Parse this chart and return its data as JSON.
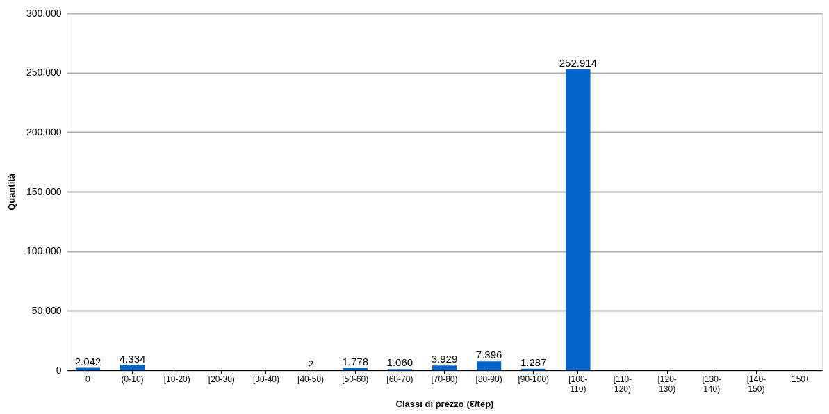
{
  "chart_data": {
    "type": "bar",
    "xlabel": "Classi di prezzo (€/tep)",
    "ylabel": "Quantità",
    "categories": [
      "0",
      "(0-10)",
      "[10-20)",
      "[20-30)",
      "[30-40)",
      "[40-50)",
      "[50-60)",
      "[60-70)",
      "[70-80)",
      "[80-90)",
      "[90-100)",
      "[100-110)",
      "[110-120)",
      "[120-130)",
      "[130-140)",
      "[140-150)",
      "150+"
    ],
    "values": [
      2042,
      4334,
      0,
      0,
      0,
      2,
      1778,
      1060,
      3929,
      7396,
      1287,
      252914,
      0,
      0,
      0,
      0,
      0
    ],
    "value_labels": [
      "2.042",
      "4.334",
      null,
      null,
      null,
      "2",
      "1.778",
      "1.060",
      "3.929",
      "7.396",
      "1.287",
      "252.914",
      null,
      null,
      null,
      null,
      null
    ],
    "color": "#0066cc",
    "ylim": [
      0,
      300000
    ],
    "yticks": [
      {
        "value": 0,
        "label": "0"
      },
      {
        "value": 50000,
        "label": "50.000"
      },
      {
        "value": 100000,
        "label": "100.000"
      },
      {
        "value": 150000,
        "label": "150.000"
      },
      {
        "value": 200000,
        "label": "200.000"
      },
      {
        "value": 250000,
        "label": "250.000"
      },
      {
        "value": 300000,
        "label": "300.000"
      }
    ],
    "grid": "y"
  }
}
